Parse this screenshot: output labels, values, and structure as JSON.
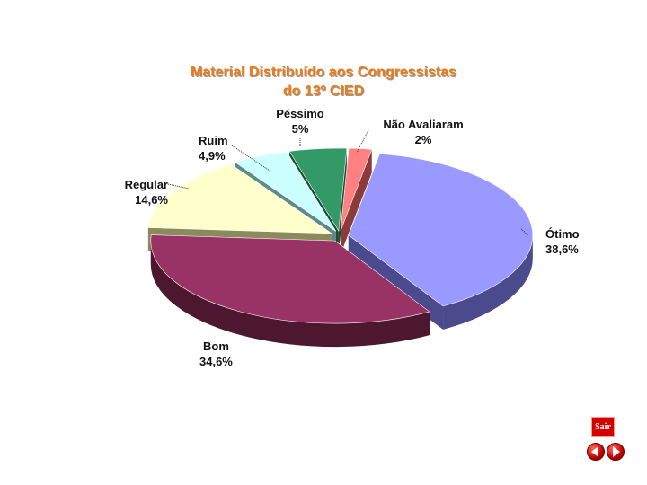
{
  "chart_data": {
    "type": "pie",
    "title": "Material Distribuído aos Congressistas\ndo 13º CIED",
    "slices": [
      {
        "label": "Ótimo",
        "value_text": "38,6%",
        "value": 38.6,
        "color": "#9999ff",
        "side": "#4a4a8c"
      },
      {
        "label": "Bom",
        "value_text": "34,6%",
        "value": 34.6,
        "color": "#993366",
        "side": "#4d1730"
      },
      {
        "label": "Regular",
        "value_text": "14,6%",
        "value": 14.6,
        "color": "#ffffcc",
        "side": "#8a8a5c"
      },
      {
        "label": "Ruim",
        "value_text": "4,9%",
        "value": 4.9,
        "color": "#ccffff",
        "side": "#5e8a8a"
      },
      {
        "label": "Péssimo",
        "value_text": "5%",
        "value": 5.0,
        "color": "#339966",
        "side": "#1a4d33"
      },
      {
        "label": "Não Avaliaram",
        "value_text": "2%",
        "value": 2.0,
        "color": "#ff8080",
        "side": "#8c3a3a"
      }
    ]
  },
  "controls": {
    "exit_label": "Sair",
    "prev_icon": "left-arrow-icon",
    "next_icon": "right-arrow-icon"
  }
}
